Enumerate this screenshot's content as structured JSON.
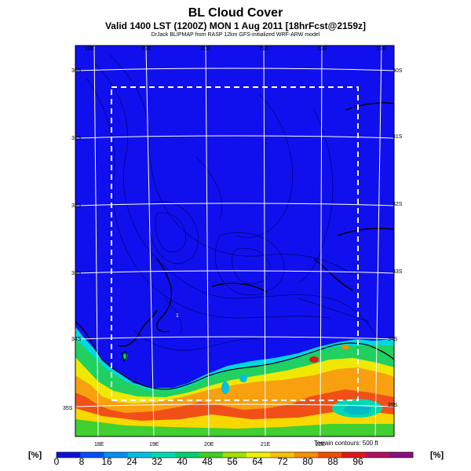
{
  "header": {
    "title": "BL Cloud Cover",
    "subtitle": "Valid 1400 LST (1200Z) MON 1 Aug 2011 [18hrFcst@2159z]",
    "credit": "DrJack BLIPMAP from RASP 12km GFS-initialized WRF-ARW model"
  },
  "map": {
    "lon_labels_top": [
      "18E",
      "19E",
      "20E",
      "21E",
      "22E",
      "23E"
    ],
    "lon_labels_bottom": [
      "18E",
      "19E",
      "20E",
      "21E",
      "22E"
    ],
    "lat_labels_left": [
      "30S",
      "31S",
      "32S",
      "33S",
      "34S",
      "35S"
    ],
    "lat_labels_right": [
      "30S",
      "31S",
      "32S",
      "33S",
      "34S",
      "35S"
    ],
    "inner_marker": "1",
    "terrain_note": "Terrain contours: 500 ft"
  },
  "colorbar": {
    "unit_left": "[%]",
    "unit_right": "[%]",
    "ticks": [
      "0",
      "8",
      "16",
      "24",
      "32",
      "40",
      "48",
      "56",
      "64",
      "72",
      "80",
      "88",
      "96"
    ],
    "colors": [
      "#1010d8",
      "#0050f8",
      "#0090f0",
      "#00c0e0",
      "#00d8b0",
      "#00d070",
      "#40d020",
      "#a0e000",
      "#f0f000",
      "#f8c000",
      "#f89000",
      "#f05000",
      "#e01818",
      "#b01060",
      "#8a1080"
    ]
  },
  "colors": {
    "ocean_background": "#1010ee",
    "grid": "#ffffff",
    "coast": "#000000"
  }
}
